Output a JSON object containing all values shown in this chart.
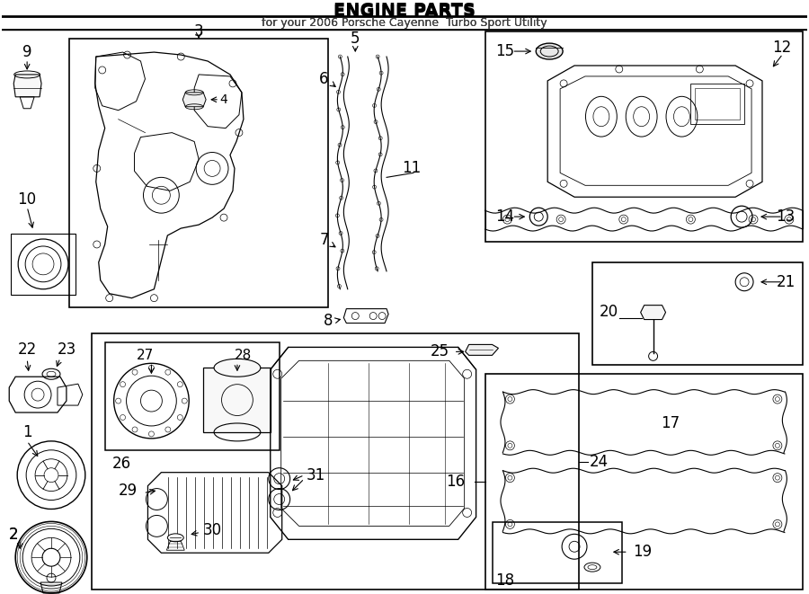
{
  "title": "ENGINE PARTS",
  "subtitle": "for your 2006 Porsche Cayenne  Turbo Sport Utility",
  "bg_color": "#ffffff",
  "line_color": "#000000",
  "lw": 1.0,
  "fs": 10,
  "fs_title": 14,
  "fs_sub": 9
}
